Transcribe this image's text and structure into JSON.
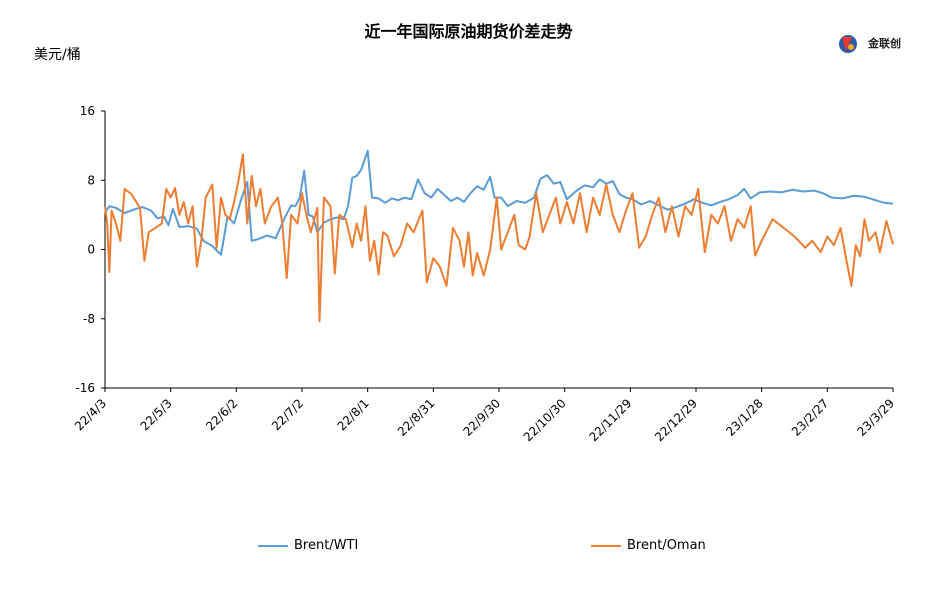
{
  "chart_data": {
    "type": "line",
    "title": "近一年国际原油期货价差走势",
    "ylabel": "美元/桶",
    "ylim": [
      -16,
      16
    ],
    "yticks": [
      16,
      8,
      0,
      -8,
      -16
    ],
    "x_range": [
      "2022-04-03",
      "2023-03-29"
    ],
    "xtick_labels": [
      "22/4/3",
      "22/5/3",
      "22/6/2",
      "22/7/2",
      "22/8/1",
      "22/8/31",
      "22/9/30",
      "22/10/30",
      "22/11/29",
      "22/12/29",
      "23/1/28",
      "23/2/27",
      "23/3/29"
    ],
    "grid": false,
    "legend": "bottom",
    "series": [
      {
        "name": "Brent/WTI",
        "color": "#5b9bd5",
        "points": [
          [
            "2022-04-03",
            4.3
          ],
          [
            "2022-04-05",
            5.0
          ],
          [
            "2022-04-08",
            4.8
          ],
          [
            "2022-04-12",
            4.2
          ],
          [
            "2022-04-16",
            4.6
          ],
          [
            "2022-04-20",
            4.9
          ],
          [
            "2022-04-24",
            4.5
          ],
          [
            "2022-04-27",
            3.6
          ],
          [
            "2022-04-30",
            3.8
          ],
          [
            "2022-05-02",
            2.8
          ],
          [
            "2022-05-04",
            4.7
          ],
          [
            "2022-05-07",
            2.6
          ],
          [
            "2022-05-11",
            2.7
          ],
          [
            "2022-05-15",
            2.4
          ],
          [
            "2022-05-18",
            1.0
          ],
          [
            "2022-05-22",
            0.4
          ],
          [
            "2022-05-26",
            -0.6
          ],
          [
            "2022-05-29",
            3.8
          ],
          [
            "2022-06-01",
            3.0
          ],
          [
            "2022-06-04",
            5.6
          ],
          [
            "2022-06-07",
            7.8
          ],
          [
            "2022-06-09",
            1.0
          ],
          [
            "2022-06-12",
            1.2
          ],
          [
            "2022-06-16",
            1.6
          ],
          [
            "2022-06-20",
            1.3
          ],
          [
            "2022-06-24",
            3.6
          ],
          [
            "2022-06-27",
            5.1
          ],
          [
            "2022-06-29",
            5.0
          ],
          [
            "2022-07-01",
            6.0
          ],
          [
            "2022-07-03",
            9.1
          ],
          [
            "2022-07-05",
            4.0
          ],
          [
            "2022-07-07",
            3.8
          ],
          [
            "2022-07-09",
            2.0
          ],
          [
            "2022-07-12",
            3.1
          ],
          [
            "2022-07-15",
            3.5
          ],
          [
            "2022-07-18",
            3.7
          ],
          [
            "2022-07-21",
            3.5
          ],
          [
            "2022-07-23",
            5.0
          ],
          [
            "2022-07-25",
            8.3
          ],
          [
            "2022-07-27",
            8.5
          ],
          [
            "2022-07-29",
            9.2
          ],
          [
            "2022-08-01",
            11.4
          ],
          [
            "2022-08-03",
            6.0
          ],
          [
            "2022-08-06",
            5.9
          ],
          [
            "2022-08-09",
            5.4
          ],
          [
            "2022-08-12",
            5.9
          ],
          [
            "2022-08-15",
            5.7
          ],
          [
            "2022-08-18",
            6.0
          ],
          [
            "2022-08-21",
            5.8
          ],
          [
            "2022-08-24",
            8.1
          ],
          [
            "2022-08-27",
            6.5
          ],
          [
            "2022-08-30",
            6.0
          ],
          [
            "2022-09-02",
            7.0
          ],
          [
            "2022-09-05",
            6.3
          ],
          [
            "2022-09-08",
            5.6
          ],
          [
            "2022-09-11",
            6.0
          ],
          [
            "2022-09-14",
            5.5
          ],
          [
            "2022-09-17",
            6.5
          ],
          [
            "2022-09-20",
            7.3
          ],
          [
            "2022-09-23",
            6.9
          ],
          [
            "2022-09-26",
            8.4
          ],
          [
            "2022-09-28",
            6.0
          ],
          [
            "2022-10-01",
            6.0
          ],
          [
            "2022-10-04",
            5.0
          ],
          [
            "2022-10-08",
            5.6
          ],
          [
            "2022-10-12",
            5.4
          ],
          [
            "2022-10-16",
            6.0
          ],
          [
            "2022-10-19",
            8.2
          ],
          [
            "2022-10-22",
            8.6
          ],
          [
            "2022-10-25",
            7.6
          ],
          [
            "2022-10-28",
            7.8
          ],
          [
            "2022-10-31",
            5.8
          ],
          [
            "2022-11-04",
            6.7
          ],
          [
            "2022-11-08",
            7.4
          ],
          [
            "2022-11-12",
            7.2
          ],
          [
            "2022-11-15",
            8.1
          ],
          [
            "2022-11-18",
            7.6
          ],
          [
            "2022-11-21",
            7.9
          ],
          [
            "2022-11-24",
            6.4
          ],
          [
            "2022-11-27",
            6.0
          ],
          [
            "2022-11-30",
            5.8
          ],
          [
            "2022-12-04",
            5.2
          ],
          [
            "2022-12-08",
            5.6
          ],
          [
            "2022-12-12",
            5.1
          ],
          [
            "2022-12-16",
            4.6
          ],
          [
            "2022-12-20",
            4.9
          ],
          [
            "2022-12-24",
            5.3
          ],
          [
            "2022-12-28",
            5.8
          ],
          [
            "2023-01-01",
            5.4
          ],
          [
            "2023-01-05",
            5.1
          ],
          [
            "2023-01-09",
            5.5
          ],
          [
            "2023-01-13",
            5.8
          ],
          [
            "2023-01-17",
            6.3
          ],
          [
            "2023-01-20",
            7.0
          ],
          [
            "2023-01-23",
            5.9
          ],
          [
            "2023-01-27",
            6.6
          ],
          [
            "2023-02-01",
            6.7
          ],
          [
            "2023-02-06",
            6.6
          ],
          [
            "2023-02-11",
            6.9
          ],
          [
            "2023-02-16",
            6.7
          ],
          [
            "2023-02-21",
            6.8
          ],
          [
            "2023-02-25",
            6.5
          ],
          [
            "2023-03-01",
            6.0
          ],
          [
            "2023-03-06",
            5.9
          ],
          [
            "2023-03-11",
            6.2
          ],
          [
            "2023-03-16",
            6.1
          ],
          [
            "2023-03-21",
            5.7
          ],
          [
            "2023-03-25",
            5.4
          ],
          [
            "2023-03-29",
            5.3
          ]
        ]
      },
      {
        "name": "Brent/Oman",
        "color": "#ed7d31",
        "points": [
          [
            "2022-04-03",
            5.0
          ],
          [
            "2022-04-04",
            3.0
          ],
          [
            "2022-04-05",
            -2.6
          ],
          [
            "2022-04-06",
            4.5
          ],
          [
            "2022-04-08",
            3.0
          ],
          [
            "2022-04-10",
            1.0
          ],
          [
            "2022-04-12",
            7.0
          ],
          [
            "2022-04-15",
            6.4
          ],
          [
            "2022-04-19",
            4.8
          ],
          [
            "2022-04-21",
            -1.3
          ],
          [
            "2022-04-23",
            2.0
          ],
          [
            "2022-04-26",
            2.5
          ],
          [
            "2022-04-29",
            3.0
          ],
          [
            "2022-05-01",
            7.0
          ],
          [
            "2022-05-03",
            6.0
          ],
          [
            "2022-05-05",
            7.1
          ],
          [
            "2022-05-07",
            4.0
          ],
          [
            "2022-05-09",
            5.5
          ],
          [
            "2022-05-11",
            3.0
          ],
          [
            "2022-05-13",
            5.0
          ],
          [
            "2022-05-15",
            -2.0
          ],
          [
            "2022-05-17",
            1.0
          ],
          [
            "2022-05-19",
            6.0
          ],
          [
            "2022-05-22",
            7.5
          ],
          [
            "2022-05-24",
            0.2
          ],
          [
            "2022-05-26",
            6.0
          ],
          [
            "2022-05-28",
            4.0
          ],
          [
            "2022-05-30",
            3.5
          ],
          [
            "2022-06-01",
            5.5
          ],
          [
            "2022-06-03",
            8.0
          ],
          [
            "2022-06-05",
            11.0
          ],
          [
            "2022-06-07",
            3.0
          ],
          [
            "2022-06-09",
            8.5
          ],
          [
            "2022-06-11",
            5.0
          ],
          [
            "2022-06-13",
            7.0
          ],
          [
            "2022-06-15",
            3.0
          ],
          [
            "2022-06-18",
            5.0
          ],
          [
            "2022-06-21",
            6.0
          ],
          [
            "2022-06-23",
            3.0
          ],
          [
            "2022-06-25",
            -3.3
          ],
          [
            "2022-06-27",
            4.0
          ],
          [
            "2022-06-30",
            3.0
          ],
          [
            "2022-07-02",
            6.5
          ],
          [
            "2022-07-04",
            4.0
          ],
          [
            "2022-07-06",
            2.0
          ],
          [
            "2022-07-09",
            4.8
          ],
          [
            "2022-07-10",
            -8.3
          ],
          [
            "2022-07-12",
            6.0
          ],
          [
            "2022-07-15",
            5.0
          ],
          [
            "2022-07-17",
            -2.8
          ],
          [
            "2022-07-19",
            4.0
          ],
          [
            "2022-07-22",
            3.5
          ],
          [
            "2022-07-25",
            0.3
          ],
          [
            "2022-07-27",
            3.0
          ],
          [
            "2022-07-29",
            1.0
          ],
          [
            "2022-07-31",
            5.0
          ],
          [
            "2022-08-02",
            -1.3
          ],
          [
            "2022-08-04",
            1.0
          ],
          [
            "2022-08-06",
            -2.9
          ],
          [
            "2022-08-08",
            2.0
          ],
          [
            "2022-08-10",
            1.6
          ],
          [
            "2022-08-13",
            -0.8
          ],
          [
            "2022-08-16",
            0.4
          ],
          [
            "2022-08-19",
            3.0
          ],
          [
            "2022-08-22",
            2.0
          ],
          [
            "2022-08-26",
            4.5
          ],
          [
            "2022-08-28",
            -3.8
          ],
          [
            "2022-08-31",
            -1.0
          ],
          [
            "2022-09-03",
            -2.0
          ],
          [
            "2022-09-06",
            -4.2
          ],
          [
            "2022-09-09",
            2.5
          ],
          [
            "2022-09-12",
            1.0
          ],
          [
            "2022-09-14",
            -2.0
          ],
          [
            "2022-09-16",
            2.0
          ],
          [
            "2022-09-18",
            -3.0
          ],
          [
            "2022-09-20",
            -0.4
          ],
          [
            "2022-09-23",
            -3.0
          ],
          [
            "2022-09-26",
            0.0
          ],
          [
            "2022-09-29",
            6.0
          ],
          [
            "2022-10-01",
            0.0
          ],
          [
            "2022-10-04",
            2.0
          ],
          [
            "2022-10-07",
            4.0
          ],
          [
            "2022-10-09",
            0.5
          ],
          [
            "2022-10-12",
            0.0
          ],
          [
            "2022-10-14",
            1.5
          ],
          [
            "2022-10-17",
            6.5
          ],
          [
            "2022-10-20",
            2.0
          ],
          [
            "2022-10-23",
            4.0
          ],
          [
            "2022-10-26",
            6.0
          ],
          [
            "2022-10-28",
            3.0
          ],
          [
            "2022-10-31",
            5.5
          ],
          [
            "2022-11-03",
            3.0
          ],
          [
            "2022-11-06",
            6.5
          ],
          [
            "2022-11-09",
            2.0
          ],
          [
            "2022-11-12",
            6.0
          ],
          [
            "2022-11-15",
            4.0
          ],
          [
            "2022-11-18",
            7.5
          ],
          [
            "2022-11-21",
            4.0
          ],
          [
            "2022-11-24",
            2.0
          ],
          [
            "2022-11-27",
            4.5
          ],
          [
            "2022-11-30",
            6.5
          ],
          [
            "2022-12-03",
            0.2
          ],
          [
            "2022-12-06",
            1.5
          ],
          [
            "2022-12-09",
            4.0
          ],
          [
            "2022-12-12",
            6.0
          ],
          [
            "2022-12-15",
            2.0
          ],
          [
            "2022-12-18",
            5.0
          ],
          [
            "2022-12-21",
            1.5
          ],
          [
            "2022-12-24",
            5.0
          ],
          [
            "2022-12-27",
            4.0
          ],
          [
            "2022-12-30",
            7.0
          ],
          [
            "2023-01-02",
            -0.3
          ],
          [
            "2023-01-05",
            4.0
          ],
          [
            "2023-01-08",
            3.0
          ],
          [
            "2023-01-11",
            5.0
          ],
          [
            "2023-01-14",
            1.0
          ],
          [
            "2023-01-17",
            3.5
          ],
          [
            "2023-01-20",
            2.5
          ],
          [
            "2023-01-23",
            5.0
          ],
          [
            "2023-01-25",
            -0.7
          ],
          [
            "2023-01-28",
            1.0
          ],
          [
            "2023-02-02",
            3.5
          ],
          [
            "2023-02-07",
            2.5
          ],
          [
            "2023-02-12",
            1.5
          ],
          [
            "2023-02-17",
            0.2
          ],
          [
            "2023-02-20",
            1.0
          ],
          [
            "2023-02-24",
            -0.3
          ],
          [
            "2023-02-27",
            1.5
          ],
          [
            "2023-03-02",
            0.5
          ],
          [
            "2023-03-05",
            2.5
          ],
          [
            "2023-03-08",
            -1.6
          ],
          [
            "2023-03-10",
            -4.2
          ],
          [
            "2023-03-12",
            0.5
          ],
          [
            "2023-03-14",
            -0.8
          ],
          [
            "2023-03-16",
            3.5
          ],
          [
            "2023-03-18",
            1.0
          ],
          [
            "2023-03-21",
            2.0
          ],
          [
            "2023-03-23",
            -0.3
          ],
          [
            "2023-03-26",
            3.3
          ],
          [
            "2023-03-29",
            0.6
          ]
        ]
      }
    ]
  },
  "logo": {
    "text": "金联创"
  }
}
